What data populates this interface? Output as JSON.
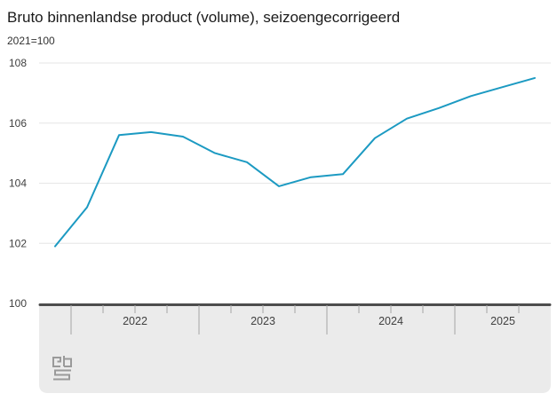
{
  "title": "Bruto binnenlandse product (volume), seizoengecorrigeerd",
  "subtitle": "2021=100",
  "chart_data": {
    "type": "line",
    "title": "Bruto binnenlandse product (volume), seizoengecorrigeerd",
    "subtitle": "2021=100",
    "series": [
      {
        "name": "Bruto binnenlandse product (volume), seizoengecorrigeerd",
        "values": [
          101.9,
          103.2,
          105.6,
          105.7,
          105.55,
          105.0,
          104.7,
          103.9,
          104.2,
          104.3,
          105.5,
          106.15,
          106.5,
          106.9,
          107.2,
          107.5
        ]
      }
    ],
    "x": [
      "2021 Q4",
      "2022 Q1",
      "2022 Q2",
      "2022 Q3",
      "2022 Q4",
      "2023 Q1",
      "2023 Q2",
      "2023 Q3",
      "2023 Q4",
      "2024 Q1",
      "2024 Q2",
      "2024 Q3",
      "2024 Q4",
      "2025 Q1",
      "2025 Q2",
      "2025 Q3"
    ],
    "x_year_labels": [
      "2022",
      "2023",
      "2024",
      "2025"
    ],
    "y_ticks": [
      100,
      102,
      104,
      106,
      108
    ],
    "ylim": [
      100,
      108
    ],
    "grid": "horizontal-only",
    "legend": "none",
    "line_color": "#1c9ac2"
  },
  "colors": {
    "line": "#1c9ac2",
    "grid": "#e6e6e6",
    "axis_label": "#404040",
    "navigator_bg": "#ebebeb",
    "navigator_border": "#4d4d4d",
    "tick": "#a6a6a6",
    "logo": "#9a9a9a"
  },
  "footer": {
    "logo": "cbs-logo"
  }
}
